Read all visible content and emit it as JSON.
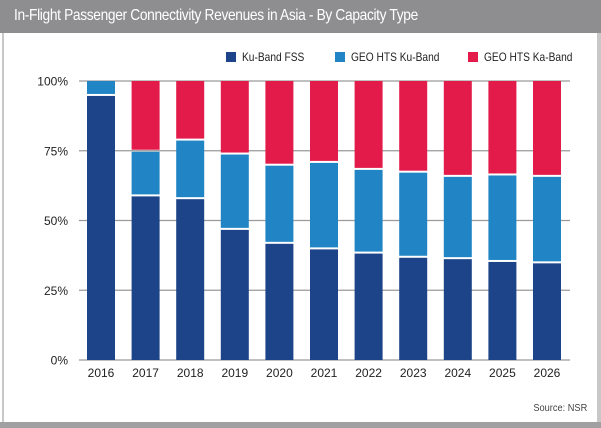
{
  "header": {
    "title": "In-Flight Passenger Connectivity Revenues in Asia - By Capacity Type"
  },
  "footer": {
    "source": "Source: NSR"
  },
  "colors": {
    "ku_band_fss": "#1d4489",
    "geo_hts_ku_band": "#2185c5",
    "geo_hts_ka_band": "#e31b4a",
    "title_bar": "#8e8e90",
    "gridline": "#9a9a9a"
  },
  "chart_data": {
    "type": "bar",
    "stacked": true,
    "normalized": true,
    "title": "In-Flight Passenger Connectivity Revenues in Asia - By Capacity Type",
    "xlabel": "",
    "ylabel": "",
    "ylim": [
      0,
      100
    ],
    "yticks": [
      0,
      25,
      50,
      75,
      100
    ],
    "ytick_labels": [
      "0%",
      "25%",
      "50%",
      "75%",
      "100%"
    ],
    "legend_position": "top-right",
    "categories": [
      "2016",
      "2017",
      "2018",
      "2019",
      "2020",
      "2021",
      "2022",
      "2023",
      "2024",
      "2025",
      "2026"
    ],
    "series": [
      {
        "name": "Ku-Band FSS",
        "color": "#1d4489",
        "values": [
          95,
          59,
          58,
          47,
          42,
          40,
          38.5,
          37,
          36.5,
          35.5,
          35
        ]
      },
      {
        "name": "GEO HTS Ku-Band",
        "color": "#2185c5",
        "values": [
          5,
          16,
          21,
          27,
          28,
          31,
          30,
          30.5,
          29.5,
          31,
          31
        ]
      },
      {
        "name": "GEO HTS Ka-Band",
        "color": "#e31b4a",
        "values": [
          0,
          25,
          21,
          26,
          30,
          29,
          31.5,
          32.5,
          34,
          33.5,
          34
        ]
      }
    ],
    "source": "Source: NSR"
  }
}
